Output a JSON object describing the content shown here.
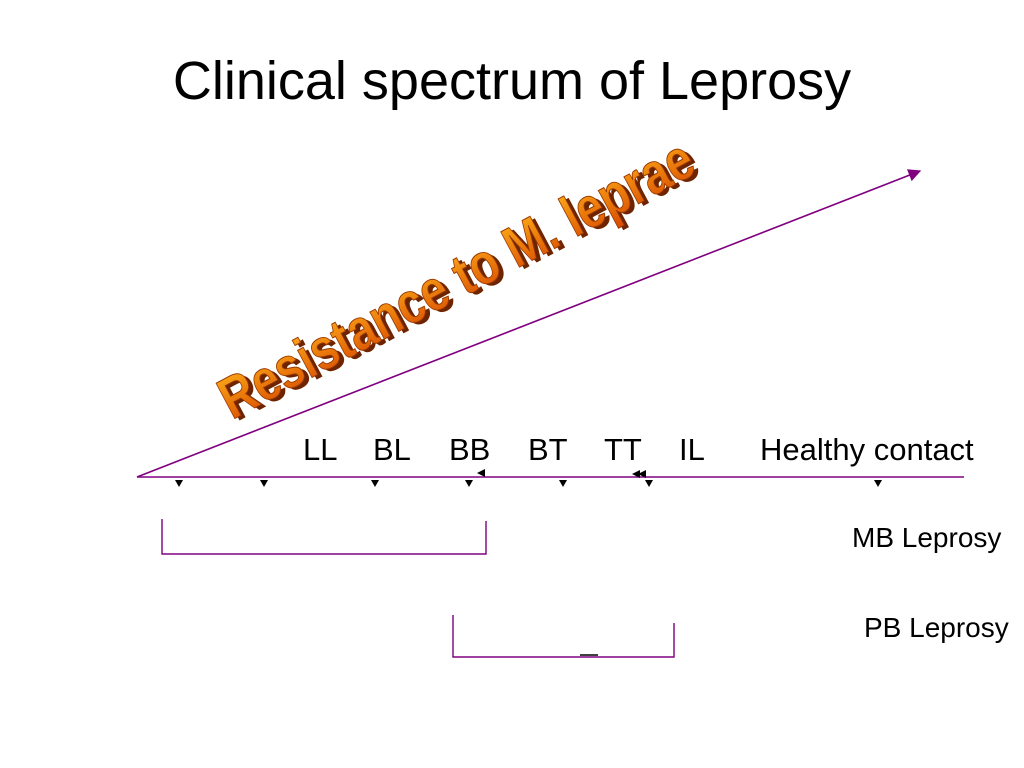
{
  "title": "Clinical spectrum of Leprosy",
  "wordart": {
    "text": "Resistance to M. leprae",
    "fill_top": "#ff9a00",
    "fill_bottom": "#d64a00",
    "shadow": "#7a2a00"
  },
  "stages": [
    {
      "label": "LL"
    },
    {
      "label": "BL"
    },
    {
      "label": "BB"
    },
    {
      "label": "BT"
    },
    {
      "label": "TT"
    },
    {
      "label": "IL"
    },
    {
      "label": "Healthy contact"
    }
  ],
  "groups": {
    "mb": "MB Leprosy",
    "pb": "PB Leprosy"
  },
  "line_color": "#800080"
}
